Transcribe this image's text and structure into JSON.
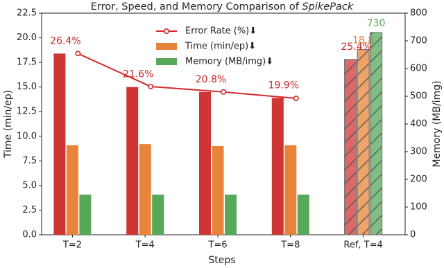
{
  "chart_data": {
    "type": "bar",
    "title": "Error, Speed, and Memory Comparison of",
    "title_italic": "SpikePack",
    "x_label": "Steps",
    "y_label": "Time (min/ep)",
    "y2_label": "Memory (MB/img)",
    "categories": [
      "T=2",
      "T=4",
      "T=6",
      "T=8",
      "Ref, T=4"
    ],
    "hatch": [
      false,
      false,
      false,
      false,
      true
    ],
    "ylim": [
      0,
      22.5
    ],
    "yticks": [
      {
        "value": 0,
        "label": "0.0"
      },
      {
        "value": 2.5,
        "label": "2.5"
      },
      {
        "value": 5,
        "label": "5.0"
      },
      {
        "value": 7.5,
        "label": "7.5"
      },
      {
        "value": 10,
        "label": "10.0"
      },
      {
        "value": 12.5,
        "label": "12.5"
      },
      {
        "value": 15,
        "label": "15.0"
      },
      {
        "value": 17.5,
        "label": "17.5"
      },
      {
        "value": 20,
        "label": "20.0"
      },
      {
        "value": 22.5,
        "label": "22.5"
      }
    ],
    "y2lim": [
      0,
      800
    ],
    "y2ticks": [
      0,
      100,
      200,
      300,
      400,
      500,
      600,
      700,
      800
    ],
    "legend": "upper center",
    "series": [
      {
        "type": "line",
        "name": "Error Rate (%)⬇",
        "color": "#d62728",
        "values": [
          18.4,
          15.05,
          14.5,
          13.85,
          null
        ]
      },
      {
        "type": "bar",
        "color": "#d03535",
        "values": [
          18.4,
          15.0,
          14.5,
          13.9,
          17.8
        ]
      },
      {
        "type": "bar",
        "name": "Time (min/ep)⬇",
        "color": "#e8843a",
        "values": [
          9.1,
          9.2,
          9.0,
          9.1,
          18.8
        ]
      },
      {
        "type": "bar",
        "name": "Memory (MB/img)⬇",
        "color": "#58a85a",
        "axis": "y2",
        "values": [
          145,
          145,
          145,
          145,
          730
        ]
      }
    ],
    "annotations": [
      "26.4%",
      "21.6%",
      "20.8%",
      "19.9%",
      "25.4%"
    ]
  }
}
